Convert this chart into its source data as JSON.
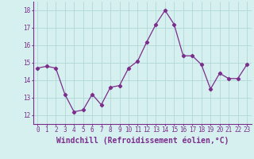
{
  "x": [
    0,
    1,
    2,
    3,
    4,
    5,
    6,
    7,
    8,
    9,
    10,
    11,
    12,
    13,
    14,
    15,
    16,
    17,
    18,
    19,
    20,
    21,
    22,
    23
  ],
  "y": [
    14.7,
    14.8,
    14.7,
    13.2,
    12.2,
    12.3,
    13.2,
    12.6,
    13.6,
    13.7,
    14.7,
    15.1,
    16.2,
    17.2,
    18.0,
    17.2,
    15.4,
    15.4,
    14.9,
    13.5,
    14.4,
    14.1,
    14.1,
    14.9
  ],
  "line_color": "#7b2d8b",
  "marker": "D",
  "marker_size": 2.2,
  "bg_color": "#d6f0f0",
  "grid_color": "#b0d8d8",
  "xlabel": "Windchill (Refroidissement éolien,°C)",
  "ylim": [
    11.5,
    18.5
  ],
  "xlim": [
    -0.5,
    23.5
  ],
  "yticks": [
    12,
    13,
    14,
    15,
    16,
    17,
    18
  ],
  "xticks": [
    0,
    1,
    2,
    3,
    4,
    5,
    6,
    7,
    8,
    9,
    10,
    11,
    12,
    13,
    14,
    15,
    16,
    17,
    18,
    19,
    20,
    21,
    22,
    23
  ],
  "tick_fontsize": 5.5,
  "xlabel_fontsize": 7.0
}
